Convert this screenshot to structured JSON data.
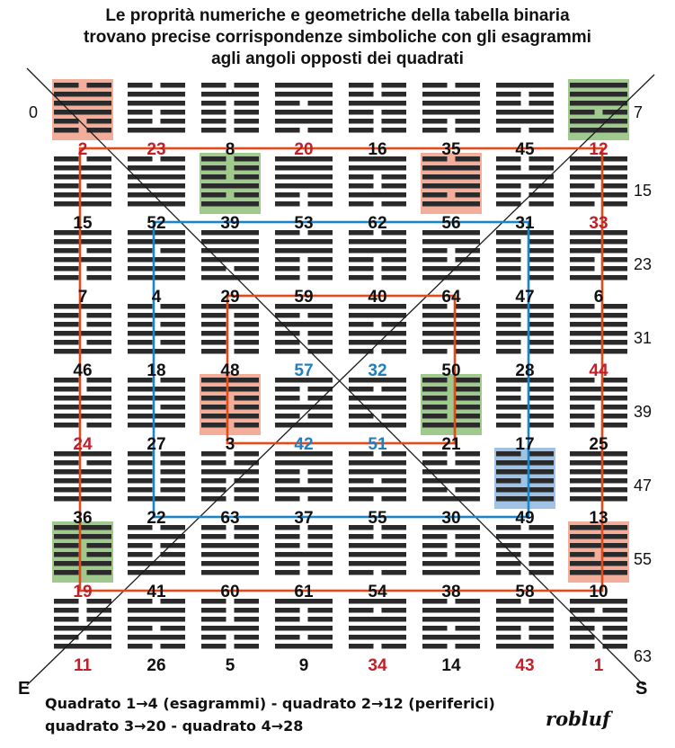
{
  "title_lines": [
    "Le proprità numeriche e geometriche della tabella binaria",
    "trovano precise corrispondenze simboliche con gli esagrammi",
    "agli angoli opposti dei quadrati"
  ],
  "grid": {
    "rows": [
      [
        "2",
        "23",
        "8",
        "20",
        "16",
        "35",
        "45",
        "12"
      ],
      [
        "15",
        "52",
        "39",
        "53",
        "62",
        "56",
        "31",
        "33"
      ],
      [
        "7",
        "4",
        "29",
        "59",
        "40",
        "64",
        "47",
        "6"
      ],
      [
        "46",
        "18",
        "48",
        "57",
        "32",
        "50",
        "28",
        "44"
      ],
      [
        "24",
        "27",
        "3",
        "42",
        "51",
        "21",
        "17",
        "25"
      ],
      [
        "36",
        "22",
        "63",
        "37",
        "55",
        "30",
        "49",
        "13"
      ],
      [
        "19",
        "41",
        "60",
        "61",
        "54",
        "38",
        "58",
        "10"
      ],
      [
        "11",
        "26",
        "5",
        "9",
        "34",
        "14",
        "43",
        "1"
      ]
    ],
    "number_colors": [
      [
        "red",
        "red",
        "black",
        "red",
        "black",
        "black",
        "black",
        "red"
      ],
      [
        "black",
        "black",
        "black",
        "black",
        "black",
        "black",
        "black",
        "red"
      ],
      [
        "black",
        "black",
        "black",
        "black",
        "black",
        "black",
        "black",
        "black"
      ],
      [
        "black",
        "black",
        "black",
        "blue",
        "blue",
        "black",
        "black",
        "red"
      ],
      [
        "red",
        "black",
        "black",
        "blue",
        "blue",
        "black",
        "black",
        "black"
      ],
      [
        "black",
        "black",
        "black",
        "black",
        "black",
        "black",
        "black",
        "black"
      ],
      [
        "red",
        "black",
        "black",
        "black",
        "black",
        "black",
        "black",
        "black"
      ],
      [
        "red",
        "black",
        "black",
        "black",
        "red",
        "black",
        "red",
        "red"
      ]
    ],
    "side_labels": [
      "0",
      "7",
      "15",
      "23",
      "31",
      "39",
      "47",
      "55",
      "63"
    ],
    "corner_labels": {
      "east": "E",
      "south": "S"
    },
    "highlights": [
      {
        "row": 0,
        "col": 0,
        "color": "red"
      },
      {
        "row": 0,
        "col": 7,
        "color": "green"
      },
      {
        "row": 1,
        "col": 2,
        "color": "green"
      },
      {
        "row": 1,
        "col": 5,
        "color": "red"
      },
      {
        "row": 4,
        "col": 2,
        "color": "red"
      },
      {
        "row": 4,
        "col": 5,
        "color": "green"
      },
      {
        "row": 5,
        "col": 6,
        "color": "blue"
      },
      {
        "row": 6,
        "col": 0,
        "color": "green"
      },
      {
        "row": 6,
        "col": 7,
        "color": "red"
      }
    ],
    "squares": [
      {
        "from": 1,
        "to": 6,
        "color": "#e24a1a"
      },
      {
        "from": 2,
        "to": 5,
        "color": "#1a86c8"
      },
      {
        "from": 3,
        "to": 4,
        "color": "#e24a1a"
      }
    ]
  },
  "colors": {
    "red_number": "#c0202a",
    "blue_number": "#1f7fc0",
    "black_number": "#111111",
    "line_stroke": "#1a1a1a",
    "highlight_red": "#f0a08a",
    "highlight_green": "#8fbf7a",
    "highlight_blue": "#8fb8e0"
  },
  "notes": [
    "Quadrato 1→4 (esagrammi) - quadrato 2→12 (periferici)",
    "quadrato 3→20  -  quadrato 4→28"
  ],
  "signature": "robluf"
}
